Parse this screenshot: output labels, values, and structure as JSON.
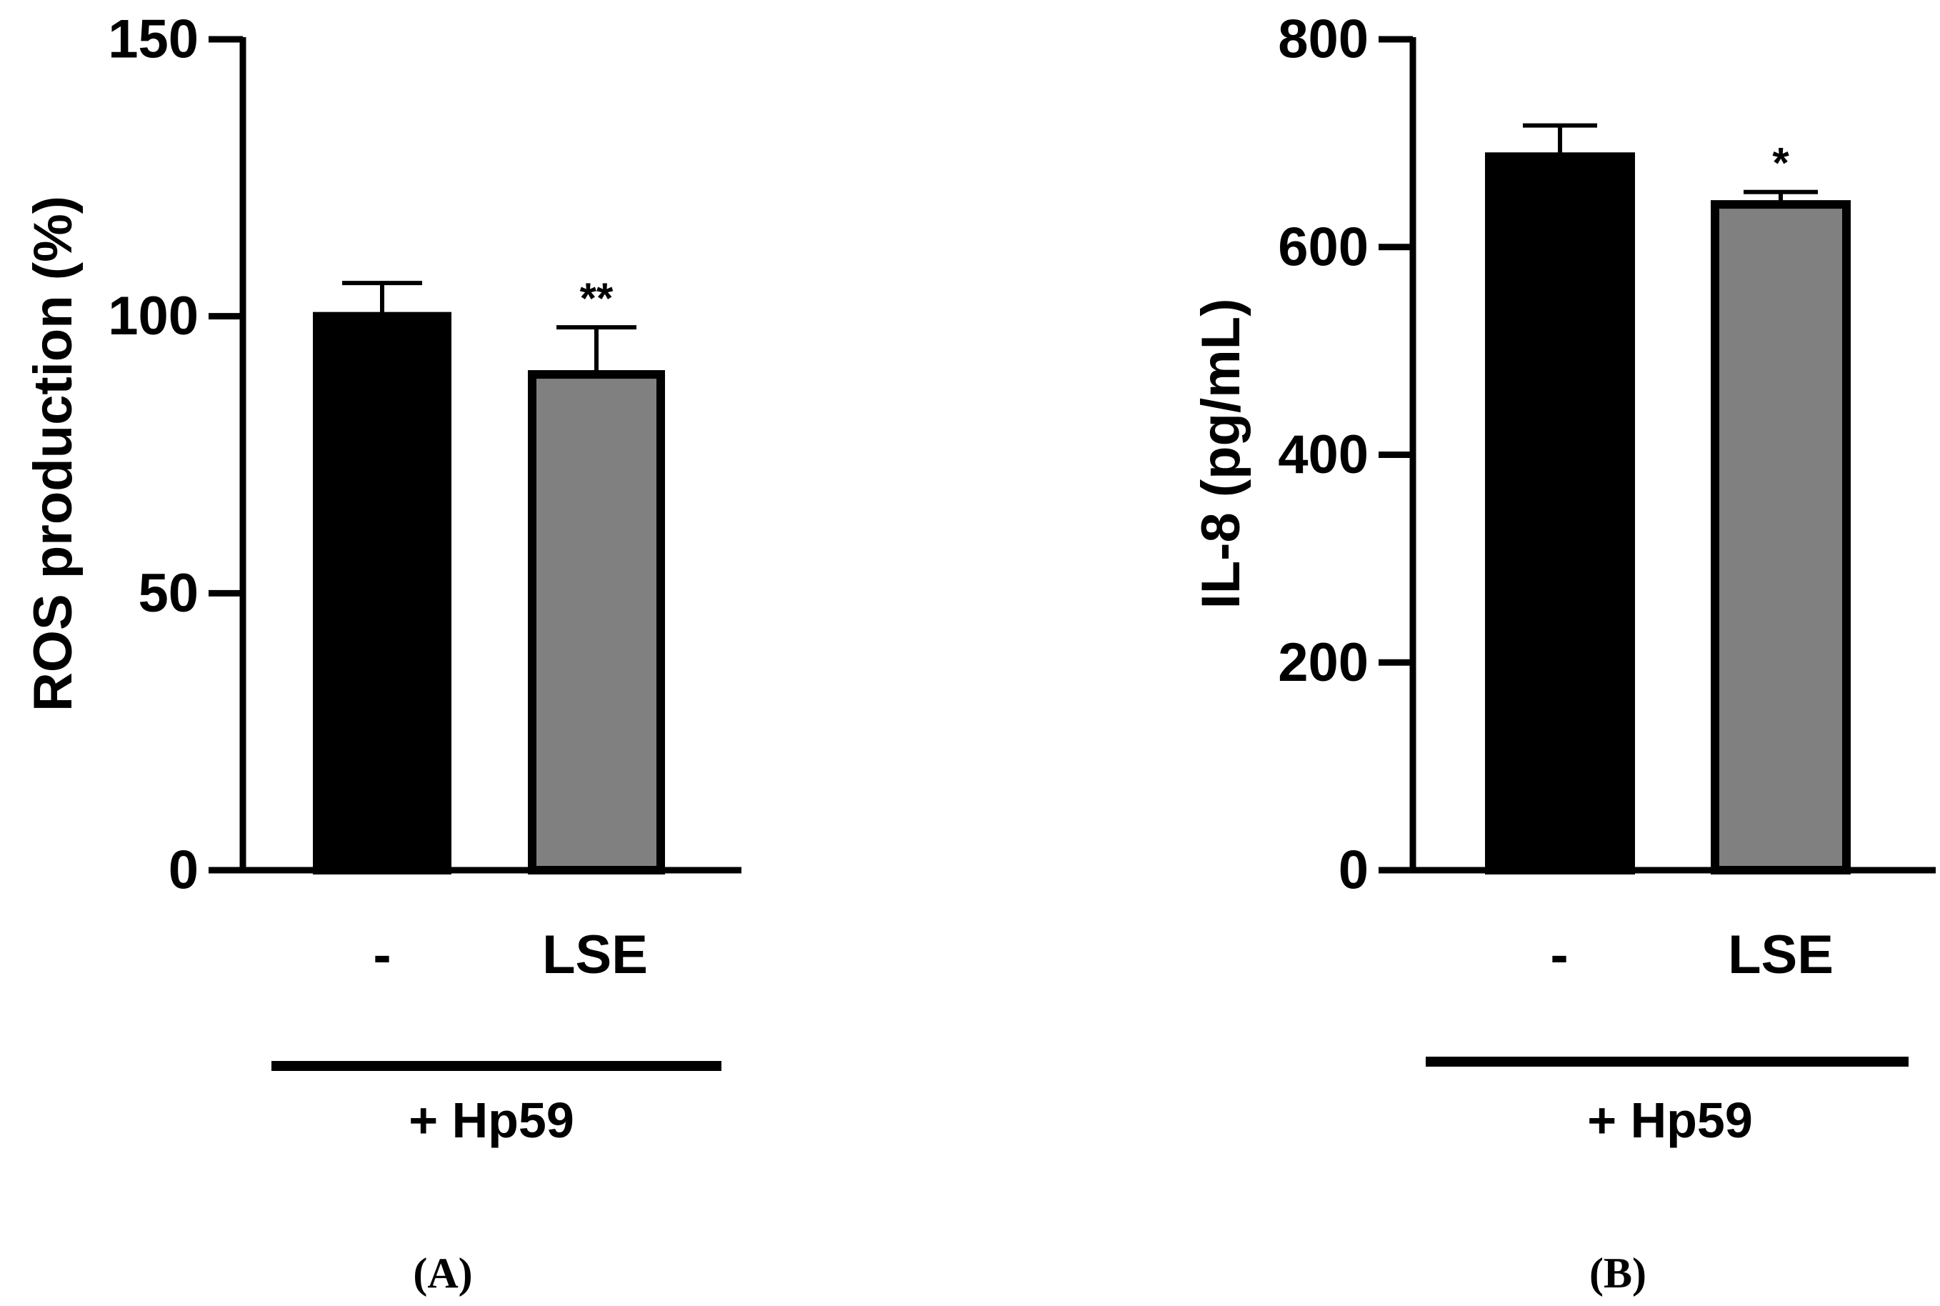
{
  "chart_data": [
    {
      "type": "bar",
      "panel_label": "(A)",
      "ylabel": "ROS production (%)",
      "ylim": [
        0,
        150
      ],
      "yticks": [
        0,
        50,
        100,
        150
      ],
      "ytick_labels": [
        "0",
        "50",
        "100",
        "150"
      ],
      "categories": [
        "-",
        "LSE"
      ],
      "values": [
        100,
        89.5
      ],
      "errors": [
        6,
        8.5
      ],
      "bar_colors": [
        "#000000",
        "#808080"
      ],
      "significance": [
        "",
        "**"
      ],
      "group_label": "+ Hp59",
      "grid": false
    },
    {
      "type": "bar",
      "panel_label": "(B)",
      "ylabel": "IL-8 (pg/mL)",
      "ylim": [
        0,
        800
      ],
      "yticks": [
        0,
        200,
        400,
        600,
        800
      ],
      "ytick_labels": [
        "0",
        "200",
        "400",
        "600",
        "800"
      ],
      "categories": [
        "-",
        "LSE"
      ],
      "values": [
        687,
        641
      ],
      "errors": [
        30,
        12
      ],
      "bar_colors": [
        "#000000",
        "#808080"
      ],
      "significance": [
        "",
        "*"
      ],
      "group_label": "+ Hp59",
      "grid": false
    }
  ]
}
